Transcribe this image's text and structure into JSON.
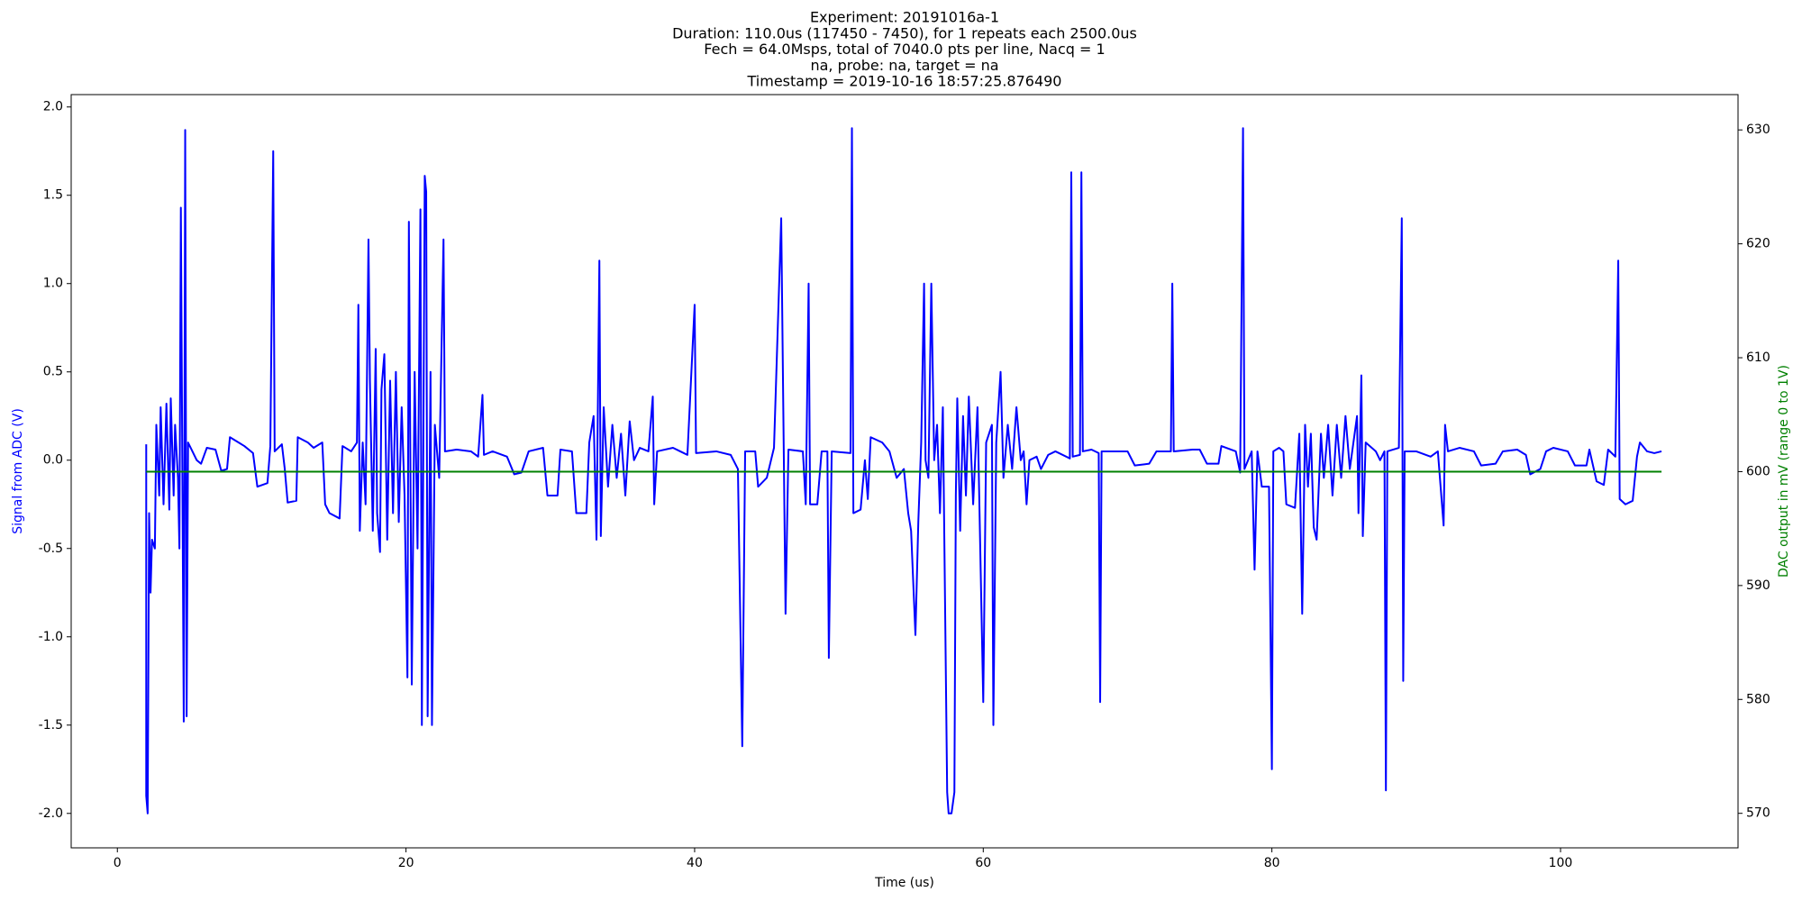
{
  "chart_data": {
    "type": "line",
    "title": [
      "Experiment: 20191016a-1",
      "Duration: 110.0us (117450 - 7450), for 1 repeats each 2500.0us",
      "Fech = 64.0Msps, total of 7040.0 pts per line, Nacq = 1",
      "na, probe: na, target = na",
      "Timestamp = 2019-10-16 18:57:25.876490"
    ],
    "xlabel": "Time (us)",
    "ylabel": "Signal from ADC (V)",
    "y2label": "DAC output in mV (range 0 to 1V)",
    "xlim": [
      -3.2,
      112.3
    ],
    "xticks": [
      0,
      20,
      40,
      60,
      80,
      100
    ],
    "ylim": [
      -2.195,
      2.07
    ],
    "yticks": [
      {
        "value": -2,
        "label": "-2.0"
      },
      -1.5,
      {
        "value": -1,
        "label": "-1.0"
      },
      -0.5,
      {
        "value": 0,
        "label": "0.0"
      },
      0.5,
      {
        "value": 1,
        "label": "1.0"
      },
      1.5,
      {
        "value": 2,
        "label": "2.0"
      }
    ],
    "y2lim": [
      566.97,
      633.1
    ],
    "y2ticks": [
      570,
      580,
      590,
      600,
      610,
      620,
      630
    ],
    "series": [
      {
        "name": "Signal from ADC",
        "color": "#0000ff",
        "x": [
          2.0,
          2.0,
          2.1,
          2.2,
          2.3,
          2.4,
          2.6,
          2.7,
          2.9,
          3.0,
          3.2,
          3.4,
          3.6,
          3.7,
          3.9,
          4.0,
          4.2,
          4.3,
          4.4,
          4.5,
          4.6,
          4.7,
          4.8,
          4.9,
          5.2,
          5.5,
          5.8,
          6.2,
          6.8,
          7.2,
          7.6,
          7.8,
          8.4,
          8.8,
          9.4,
          9.7,
          10.4,
          10.6,
          10.8,
          10.9,
          11.4,
          11.6,
          11.8,
          12.4,
          12.5,
          13.2,
          13.6,
          14.2,
          14.4,
          14.7,
          15.4,
          15.6,
          16.2,
          16.6,
          16.7,
          16.8,
          17.0,
          17.2,
          17.4,
          17.5,
          17.7,
          17.9,
          18.0,
          18.2,
          18.3,
          18.5,
          18.7,
          18.9,
          19.1,
          19.3,
          19.5,
          19.7,
          19.9,
          20.1,
          20.2,
          20.4,
          20.6,
          20.8,
          21.0,
          21.1,
          21.3,
          21.4,
          21.5,
          21.7,
          21.8,
          22.0,
          22.3,
          22.6,
          22.7,
          23.5,
          24.5,
          25.0,
          25.3,
          25.4,
          26.0,
          27.0,
          27.5,
          28.0,
          28.5,
          29.5,
          29.8,
          30.5,
          30.7,
          31.5,
          31.8,
          32.5,
          32.7,
          33.0,
          33.2,
          33.4,
          33.5,
          33.7,
          34.0,
          34.3,
          34.6,
          34.9,
          35.2,
          35.5,
          35.8,
          36.2,
          36.8,
          37.1,
          37.2,
          37.4,
          38.5,
          39.0,
          39.5,
          40.0,
          40.1,
          41.5,
          42.5,
          43.0,
          43.3,
          43.5,
          44.2,
          44.4,
          45.0,
          45.5,
          46.0,
          46.3,
          46.5,
          47.5,
          47.7,
          47.9,
          48.0,
          48.5,
          48.8,
          49.2,
          49.3,
          49.5,
          50.8,
          50.9,
          51.0,
          51.5,
          51.8,
          52.0,
          52.2,
          53.0,
          53.5,
          54.0,
          54.5,
          54.8,
          55.0,
          55.3,
          55.5,
          55.7,
          55.9,
          56.0,
          56.2,
          56.4,
          56.6,
          56.8,
          57.0,
          57.2,
          57.5,
          57.6,
          57.8,
          58.0,
          58.1,
          58.2,
          58.4,
          58.6,
          58.8,
          59.0,
          59.3,
          59.6,
          60.0,
          60.2,
          60.6,
          60.7,
          60.9,
          61.2,
          61.4,
          61.7,
          62.0,
          62.3,
          62.6,
          62.8,
          63.0,
          63.2,
          63.7,
          64.0,
          64.5,
          65.0,
          66.0,
          66.1,
          66.2,
          66.7,
          66.8,
          66.9,
          67.5,
          68.0,
          68.1,
          68.2,
          69.5,
          70.0,
          70.5,
          71.5,
          72.0,
          73.0,
          73.1,
          73.2,
          74.5,
          75.0,
          75.5,
          76.3,
          76.5,
          77.5,
          77.8,
          78.0,
          78.1,
          78.6,
          78.8,
          79.0,
          79.3,
          79.8,
          80.0,
          80.1,
          80.5,
          80.8,
          81.0,
          81.6,
          81.9,
          82.1,
          82.3,
          82.5,
          82.7,
          82.9,
          83.1,
          83.4,
          83.6,
          83.9,
          84.2,
          84.5,
          84.8,
          85.1,
          85.4,
          85.9,
          86.0,
          86.2,
          86.3,
          86.5,
          87.2,
          87.5,
          87.8,
          87.9,
          88.0,
          88.8,
          89.0,
          89.1,
          89.2,
          90.0,
          91.0,
          91.5,
          91.9,
          92.0,
          92.2,
          93.0,
          94.0,
          94.5,
          95.5,
          96.0,
          97.0,
          97.6,
          97.9,
          98.6,
          99.0,
          99.5,
          100.5,
          101.0,
          101.8,
          102.0,
          102.5,
          103.0,
          103.3,
          103.8,
          104.0,
          104.1,
          104.5,
          105.0,
          105.3,
          105.5,
          106.0,
          106.5,
          107.0
        ],
        "values": [
          0.09,
          -1.9,
          -2.0,
          -0.3,
          -0.75,
          -0.45,
          -0.5,
          0.2,
          -0.2,
          0.3,
          -0.25,
          0.32,
          -0.28,
          0.35,
          -0.2,
          0.2,
          -0.1,
          -0.5,
          1.43,
          0.0,
          -1.48,
          1.87,
          -1.45,
          0.1,
          0.05,
          0.0,
          -0.02,
          0.07,
          0.06,
          -0.06,
          -0.05,
          0.13,
          0.1,
          0.08,
          0.04,
          -0.15,
          -0.13,
          0.08,
          1.75,
          0.05,
          0.09,
          -0.05,
          -0.24,
          -0.23,
          0.13,
          0.1,
          0.07,
          0.1,
          -0.25,
          -0.3,
          -0.33,
          0.08,
          0.05,
          0.1,
          0.88,
          -0.4,
          0.1,
          -0.25,
          1.25,
          0.45,
          -0.4,
          0.63,
          -0.3,
          -0.52,
          0.4,
          0.6,
          -0.45,
          0.45,
          -0.3,
          0.5,
          -0.35,
          0.3,
          -0.2,
          -1.23,
          1.35,
          -1.27,
          0.5,
          -0.5,
          1.42,
          -1.5,
          1.61,
          1.52,
          -1.45,
          0.5,
          -1.5,
          0.2,
          -0.1,
          1.25,
          0.05,
          0.06,
          0.05,
          0.02,
          0.37,
          0.03,
          0.05,
          0.02,
          -0.08,
          -0.07,
          0.05,
          0.07,
          -0.2,
          -0.2,
          0.06,
          0.05,
          -0.3,
          -0.3,
          0.1,
          0.25,
          -0.45,
          1.13,
          -0.43,
          0.3,
          -0.15,
          0.2,
          -0.1,
          0.15,
          -0.2,
          0.22,
          0.0,
          0.07,
          0.05,
          0.36,
          -0.25,
          0.05,
          0.07,
          0.05,
          0.03,
          0.88,
          0.04,
          0.05,
          0.03,
          -0.05,
          -1.62,
          0.05,
          0.05,
          -0.15,
          -0.1,
          0.07,
          1.37,
          -0.87,
          0.06,
          0.05,
          -0.25,
          1.0,
          -0.25,
          -0.25,
          0.05,
          0.05,
          -1.12,
          0.05,
          0.04,
          1.88,
          -0.3,
          -0.28,
          0.0,
          -0.22,
          0.13,
          0.1,
          0.05,
          -0.1,
          -0.05,
          -0.3,
          -0.4,
          -0.99,
          -0.35,
          0.1,
          1.0,
          0.0,
          -0.1,
          1.0,
          0.0,
          0.2,
          -0.3,
          0.3,
          -1.88,
          -2.0,
          -2.0,
          -1.88,
          -0.2,
          0.35,
          -0.4,
          0.25,
          -0.2,
          0.36,
          -0.25,
          0.3,
          -1.37,
          0.1,
          0.2,
          -1.5,
          0.1,
          0.5,
          -0.1,
          0.2,
          -0.05,
          0.3,
          0.0,
          0.05,
          -0.25,
          0.0,
          0.02,
          -0.05,
          0.03,
          0.05,
          0.01,
          1.63,
          0.02,
          0.03,
          1.63,
          0.05,
          0.06,
          0.04,
          -1.37,
          0.05,
          0.05,
          0.05,
          -0.03,
          -0.02,
          0.05,
          0.05,
          1.0,
          0.05,
          0.06,
          0.06,
          -0.02,
          -0.02,
          0.08,
          0.05,
          -0.07,
          1.88,
          -0.05,
          0.05,
          -0.62,
          0.05,
          -0.15,
          -0.15,
          -1.75,
          0.05,
          0.07,
          0.05,
          -0.25,
          -0.27,
          0.15,
          -0.87,
          0.2,
          -0.15,
          0.15,
          -0.38,
          -0.45,
          0.15,
          -0.1,
          0.2,
          -0.2,
          0.2,
          -0.1,
          0.25,
          -0.05,
          0.25,
          -0.3,
          0.48,
          -0.43,
          0.1,
          0.05,
          0.0,
          0.05,
          -1.87,
          0.05,
          0.07,
          1.37,
          -1.25,
          0.05,
          0.05,
          0.02,
          0.05,
          -0.37,
          0.2,
          0.05,
          0.07,
          0.05,
          -0.03,
          -0.02,
          0.05,
          0.06,
          0.03,
          -0.08,
          -0.05,
          0.05,
          0.07,
          0.05,
          -0.03,
          -0.03,
          0.06,
          -0.12,
          -0.14,
          0.06,
          0.02,
          1.13,
          -0.22,
          -0.25,
          -0.23,
          0.02,
          0.1,
          0.05,
          0.04,
          0.05
        ]
      },
      {
        "name": "DAC output",
        "color": "#008000",
        "axis": "y2",
        "x": [
          2.0,
          107.0
        ],
        "values": [
          600,
          600
        ]
      }
    ]
  }
}
